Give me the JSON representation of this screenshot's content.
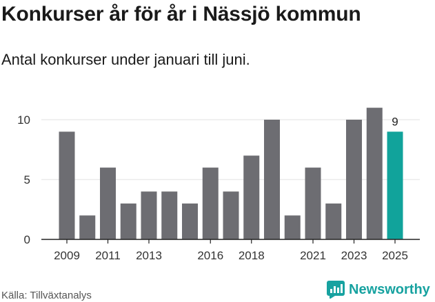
{
  "title": "Konkurser år för år i Nässjö kommun",
  "subtitle": "Antal konkurser under januari till juni.",
  "source": "Källa: Tillväxtanalys",
  "brand": {
    "name": "Newsworthy",
    "icon": "newsworthy-chart-icon",
    "color": "#17a2a0"
  },
  "colors": {
    "bar": "#6d6d72",
    "highlight": "#11a39b",
    "grid": "#e2e2e2",
    "axis": "#222222"
  },
  "chart_data": {
    "type": "bar",
    "categories": [
      "2009",
      "2010",
      "2011",
      "2012",
      "2013",
      "2014",
      "2015",
      "2016",
      "2017",
      "2018",
      "2019",
      "2020",
      "2021",
      "2022",
      "2023",
      "2024",
      "2025"
    ],
    "values": [
      9,
      2,
      6,
      3,
      4,
      4,
      3,
      6,
      4,
      7,
      10,
      2,
      6,
      3,
      10,
      11,
      9
    ],
    "highlight_index": 16,
    "value_labels": {
      "16": "9"
    },
    "tick_labels": [
      "2009",
      "2011",
      "2013",
      "2016",
      "2018",
      "2021",
      "2023",
      "2025"
    ],
    "yticks": [
      0,
      5,
      10
    ],
    "ylim": [
      0,
      11
    ],
    "grid": true,
    "title": "Konkurser år för år i Nässjö kommun",
    "xlabel": "",
    "ylabel": ""
  }
}
